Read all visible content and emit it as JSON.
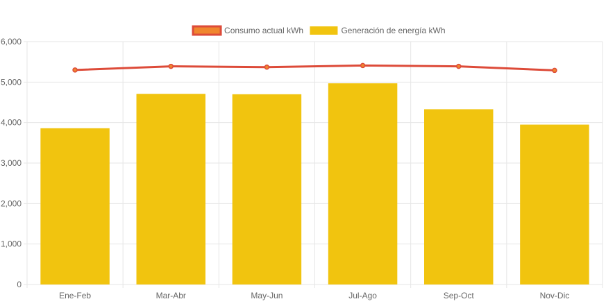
{
  "chart_data": {
    "type": "bar",
    "title": "",
    "xlabel": "",
    "ylabel": "",
    "categories": [
      "Ene-Feb",
      "Mar-Abr",
      "May-Jun",
      "Jul-Ago",
      "Sep-Oct",
      "Nov-Dic"
    ],
    "ylim": [
      0,
      6000
    ],
    "yticks": [
      0,
      1000,
      2000,
      3000,
      4000,
      5000,
      6000
    ],
    "ytick_labels": [
      "0",
      "1,000",
      "2,000",
      "3,000",
      "4,000",
      "5,000",
      "6,000"
    ],
    "grid": true,
    "legend_position": "top-center",
    "series": [
      {
        "name": "Consumo actual kWh",
        "type": "line",
        "color": "#dd4b39",
        "fill_color": "#f0862e",
        "values": [
          5300,
          5390,
          5370,
          5410,
          5390,
          5290
        ]
      },
      {
        "name": "Generación de energía kWh",
        "type": "bar",
        "color": "#f1c40f",
        "values": [
          3860,
          4710,
          4700,
          4970,
          4330,
          3950
        ]
      }
    ]
  }
}
